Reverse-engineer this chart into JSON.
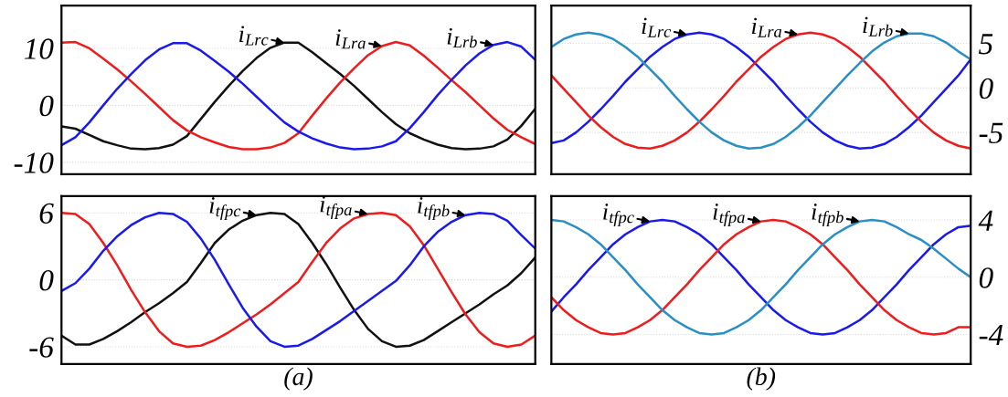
{
  "chart_data": [
    {
      "type": "line",
      "categories": [
        null,
        null,
        null,
        null,
        null,
        null,
        null,
        null,
        null,
        null,
        null,
        null,
        null,
        null,
        null,
        null,
        null,
        null,
        null,
        null,
        null,
        null,
        null,
        null,
        null,
        null,
        null,
        null,
        null,
        null,
        null,
        null,
        null,
        null,
        null
      ],
      "ylim": [
        -12.1,
        17.5
      ],
      "yticks": [
        -10,
        0,
        10
      ],
      "grid": "y",
      "tick_labels": "y",
      "line_style": "solid",
      "marker": "none",
      "series": [
        {
          "name": "i$_{Lrc}$",
          "color": "#111111",
          "values": [
            -3.7,
            -4.1,
            -5.2,
            -6.3,
            -7.0,
            -7.6,
            -7.7,
            -7.5,
            -6.9,
            -5.4,
            -2.4,
            0.6,
            3.4,
            6.0,
            8.3,
            10.1,
            11.0,
            11.0,
            9.3,
            7.4,
            5.5,
            3.4,
            1.1,
            -1.2,
            -3.3,
            -4.9,
            -6.0,
            -6.9,
            -7.5,
            -7.7,
            -7.6,
            -7.2,
            -6.0,
            -3.6,
            -0.6
          ]
        },
        {
          "name": "i$_{Lra}$",
          "color": "#ee1c1c",
          "values": [
            11.0,
            11.1,
            10.0,
            8.2,
            6.3,
            4.2,
            2.0,
            -0.3,
            -2.6,
            -4.4,
            -5.6,
            -6.5,
            -7.3,
            -7.7,
            -7.7,
            -7.4,
            -6.6,
            -4.9,
            -1.8,
            1.2,
            4.0,
            6.5,
            8.8,
            10.4,
            11.1,
            10.5,
            8.7,
            6.6,
            4.4,
            2.3,
            0.0,
            -2.3,
            -4.3,
            -5.6,
            -6.8
          ]
        },
        {
          "name": "i$_{Lrb}$",
          "color": "#1a1aee",
          "values": [
            -7.0,
            -5.6,
            -3.0,
            0.0,
            2.9,
            5.5,
            7.9,
            9.8,
            10.9,
            10.9,
            9.6,
            7.8,
            5.9,
            3.8,
            1.5,
            -0.8,
            -3.0,
            -4.6,
            -5.8,
            -6.7,
            -7.4,
            -7.7,
            -7.6,
            -7.2,
            -6.3,
            -4.0,
            -1.2,
            1.8,
            4.5,
            7.0,
            9.1,
            10.6,
            11.1,
            10.3,
            8.0
          ]
        }
      ]
    },
    {
      "type": "line",
      "categories": [
        null,
        null,
        null,
        null,
        null,
        null,
        null,
        null,
        null,
        null,
        null,
        null,
        null,
        null,
        null,
        null,
        null,
        null,
        null,
        null,
        null,
        null,
        null,
        null,
        null,
        null,
        null,
        null,
        null,
        null,
        null,
        null,
        null,
        null,
        null
      ],
      "ylim": [
        -9.7,
        9.25
      ],
      "yticks": [
        -5,
        0,
        5
      ],
      "grid": "y",
      "tick_labels": "y",
      "line_style": "solid",
      "marker": "none",
      "series": [
        {
          "name": "i$_{Lrc}$",
          "color": "#1a1aee",
          "values": [
            -6.2,
            -5.9,
            -5.0,
            -3.8,
            -2.4,
            -0.9,
            0.7,
            2.1,
            3.5,
            4.6,
            5.5,
            6.0,
            6.2,
            6.0,
            5.5,
            4.6,
            3.5,
            2.1,
            0.7,
            -0.9,
            -2.4,
            -3.8,
            -5.0,
            -5.9,
            -6.5,
            -6.8,
            -6.7,
            -6.3,
            -5.5,
            -4.4,
            -3.1,
            -1.6,
            -0.1,
            1.4,
            3.2
          ]
        },
        {
          "name": "i$_{Lra}$",
          "color": "#ee1c1c",
          "values": [
            1.4,
            -0.1,
            -1.6,
            -3.1,
            -4.4,
            -5.5,
            -6.3,
            -6.7,
            -6.8,
            -6.5,
            -5.9,
            -5.0,
            -3.8,
            -2.4,
            -0.9,
            0.7,
            2.1,
            3.5,
            4.6,
            5.5,
            6.0,
            6.2,
            6.0,
            5.5,
            4.6,
            3.5,
            2.1,
            0.7,
            -0.9,
            -2.4,
            -3.8,
            -5.0,
            -5.9,
            -6.5,
            -6.8
          ]
        },
        {
          "name": "i$_{Lrb}$",
          "color": "#2a8fc4",
          "values": [
            4.6,
            5.5,
            6.0,
            6.2,
            6.0,
            5.5,
            4.6,
            3.5,
            2.1,
            0.7,
            -0.9,
            -2.4,
            -3.8,
            -5.0,
            -5.9,
            -6.5,
            -6.8,
            -6.7,
            -6.3,
            -5.5,
            -4.4,
            -3.1,
            -1.6,
            -0.1,
            1.4,
            2.8,
            4.1,
            5.1,
            5.8,
            6.1,
            6.1,
            5.8,
            5.1,
            4.1,
            3.2
          ]
        }
      ]
    },
    {
      "type": "line",
      "categories": [
        null,
        null,
        null,
        null,
        null,
        null,
        null,
        null,
        null,
        null,
        null,
        null,
        null,
        null,
        null,
        null,
        null,
        null,
        null,
        null,
        null,
        null,
        null,
        null,
        null,
        null,
        null,
        null,
        null,
        null,
        null,
        null,
        null,
        null,
        null
      ],
      "ylim": [
        -7.55,
        7.5
      ],
      "yticks": [
        -6,
        0,
        6
      ],
      "grid": "y",
      "tick_labels": "y",
      "line_style": "solid",
      "marker": "none",
      "annotations": [
        "(a)"
      ],
      "series": [
        {
          "name": "i$_{tfpc}$",
          "color": "#111111",
          "values": [
            -5.0,
            -5.8,
            -5.8,
            -5.3,
            -4.6,
            -3.8,
            -2.9,
            -2.1,
            -1.2,
            -0.2,
            1.5,
            3.3,
            4.5,
            5.3,
            5.8,
            6.0,
            5.9,
            5.0,
            3.3,
            1.4,
            -0.7,
            -2.7,
            -4.4,
            -5.5,
            -6.0,
            -5.9,
            -5.4,
            -4.6,
            -3.8,
            -3.0,
            -2.2,
            -1.3,
            -0.5,
            0.6,
            2.0
          ]
        },
        {
          "name": "i$_{tfpa}$",
          "color": "#ee1c1c",
          "values": [
            6.0,
            5.9,
            5.0,
            3.3,
            1.3,
            -0.9,
            -2.9,
            -4.6,
            -5.7,
            -6.0,
            -5.9,
            -5.4,
            -4.7,
            -3.9,
            -3.1,
            -2.2,
            -1.2,
            -0.2,
            1.6,
            3.3,
            4.6,
            5.5,
            5.9,
            6.0,
            5.8,
            4.8,
            3.1,
            1.0,
            -1.1,
            -3.1,
            -4.7,
            -5.7,
            -6.0,
            -5.8,
            -5.0
          ]
        },
        {
          "name": "i$_{tfpb}$",
          "color": "#1a1aee",
          "values": [
            -1.0,
            -0.3,
            1.0,
            2.6,
            3.9,
            4.9,
            5.6,
            6.0,
            5.9,
            5.2,
            3.7,
            1.8,
            -0.4,
            -2.5,
            -4.2,
            -5.5,
            -6.0,
            -5.9,
            -5.3,
            -4.5,
            -3.7,
            -2.8,
            -1.9,
            -1.0,
            -0.1,
            1.3,
            3.0,
            4.3,
            5.2,
            5.8,
            6.0,
            5.9,
            5.3,
            4.0,
            2.8
          ]
        }
      ]
    },
    {
      "type": "line",
      "categories": [
        null,
        null,
        null,
        null,
        null,
        null,
        null,
        null,
        null,
        null,
        null,
        null,
        null,
        null,
        null,
        null,
        null,
        null,
        null,
        null,
        null,
        null,
        null,
        null,
        null,
        null,
        null,
        null,
        null,
        null,
        null,
        null,
        null,
        null,
        null
      ],
      "ylim": [
        -6.07,
        5.67
      ],
      "yticks": [
        -4,
        0,
        4
      ],
      "grid": "y",
      "tick_labels": "y",
      "line_style": "solid",
      "marker": "none",
      "annotations": [
        "(b)"
      ],
      "series": [
        {
          "name": "i$_{tfpc}$",
          "color": "#1a1aee",
          "values": [
            -2.4,
            -1.4,
            -0.5,
            0.5,
            1.4,
            2.3,
            3.0,
            3.5,
            3.9,
            4.0,
            3.9,
            3.5,
            3.0,
            2.3,
            1.4,
            0.5,
            -0.5,
            -1.4,
            -2.3,
            -3.0,
            -3.5,
            -3.9,
            -4.0,
            -3.9,
            -3.5,
            -3.0,
            -2.3,
            -1.4,
            -0.5,
            0.5,
            1.4,
            2.3,
            3.0,
            3.5,
            3.6
          ]
        },
        {
          "name": "i$_{tfpa}$",
          "color": "#ee1c1c",
          "values": [
            -1.4,
            -2.3,
            -3.0,
            -3.5,
            -3.9,
            -4.0,
            -3.9,
            -3.5,
            -3.0,
            -2.3,
            -1.4,
            -0.5,
            0.5,
            1.4,
            2.3,
            3.0,
            3.5,
            3.9,
            4.0,
            3.9,
            3.5,
            3.0,
            2.3,
            1.4,
            0.5,
            -0.5,
            -1.4,
            -2.3,
            -3.0,
            -3.5,
            -3.9,
            -4.0,
            -3.9,
            -3.5,
            -3.5
          ]
        },
        {
          "name": "i$_{tfpb}$",
          "color": "#2a8fc4",
          "values": [
            4.0,
            3.9,
            3.5,
            3.0,
            2.3,
            1.4,
            0.5,
            -0.5,
            -1.4,
            -2.3,
            -3.0,
            -3.5,
            -3.9,
            -4.0,
            -3.9,
            -3.5,
            -3.0,
            -2.3,
            -1.4,
            -0.5,
            0.5,
            1.4,
            2.3,
            3.0,
            3.5,
            3.9,
            4.0,
            3.9,
            3.5,
            3.0,
            2.6,
            2.0,
            1.3,
            0.6,
            0.0
          ]
        }
      ]
    }
  ]
}
